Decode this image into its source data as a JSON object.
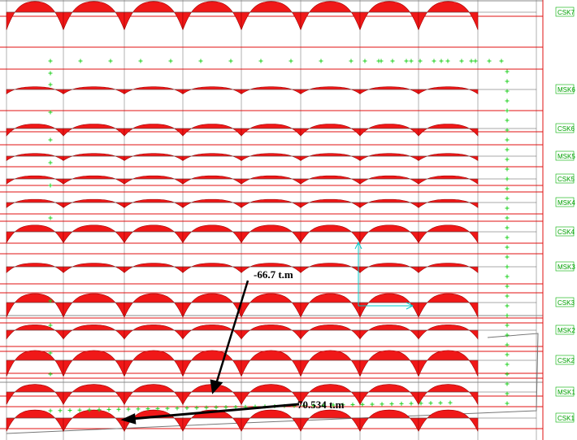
{
  "strip_labels": [
    "CSK7",
    "MSK6",
    "CSK6",
    "MSK5",
    "CSK5",
    "MSK4",
    "CSK4",
    "MSK3",
    "CSK3",
    "MSK2",
    "CSK2",
    "MSK1",
    "CSK1"
  ],
  "annotations": [
    "-66.7 t.m",
    "70.534 t.m"
  ]
}
